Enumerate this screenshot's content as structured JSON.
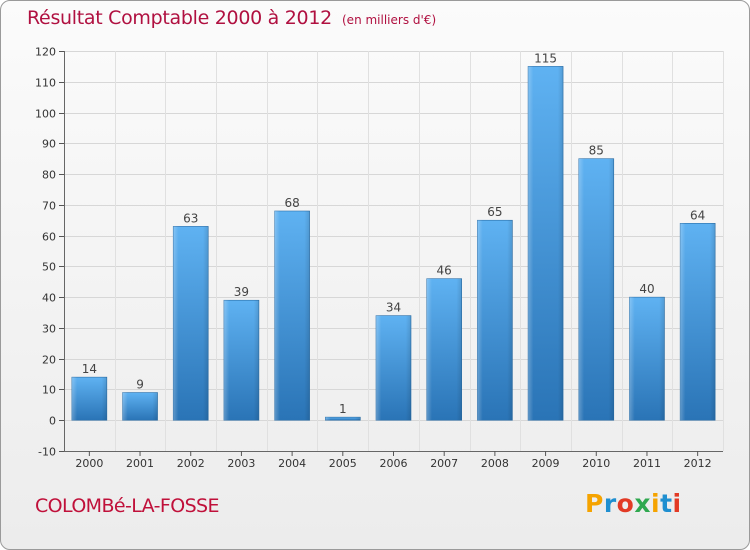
{
  "header": {
    "title": "Résultat Comptable 2000 à 2012",
    "subtitle": "(en milliers d'€)"
  },
  "footer": {
    "commune": "COLOMBé-LA-FOSSE",
    "brand": "Proxiti",
    "brand_colors": [
      "#f5a300",
      "#1f8fd0",
      "#e23a25",
      "#2fa84f",
      "#f5a300",
      "#1f8fd0",
      "#e23a25"
    ]
  },
  "colors": {
    "title": "#b01040",
    "bar_light": "#5aaef0",
    "bar_dark": "#2a76b8",
    "grid": "#d7d7d7"
  },
  "chart_data": {
    "type": "bar",
    "categories": [
      "2000",
      "2001",
      "2002",
      "2003",
      "2004",
      "2005",
      "2006",
      "2007",
      "2008",
      "2009",
      "2010",
      "2011",
      "2012"
    ],
    "values": [
      14,
      9,
      63,
      39,
      68,
      1,
      34,
      46,
      65,
      115,
      85,
      40,
      64
    ],
    "ylim": [
      -10,
      120
    ],
    "yticks": [
      -10,
      0,
      10,
      20,
      30,
      40,
      50,
      60,
      70,
      80,
      90,
      100,
      110,
      120
    ],
    "grid": true
  }
}
